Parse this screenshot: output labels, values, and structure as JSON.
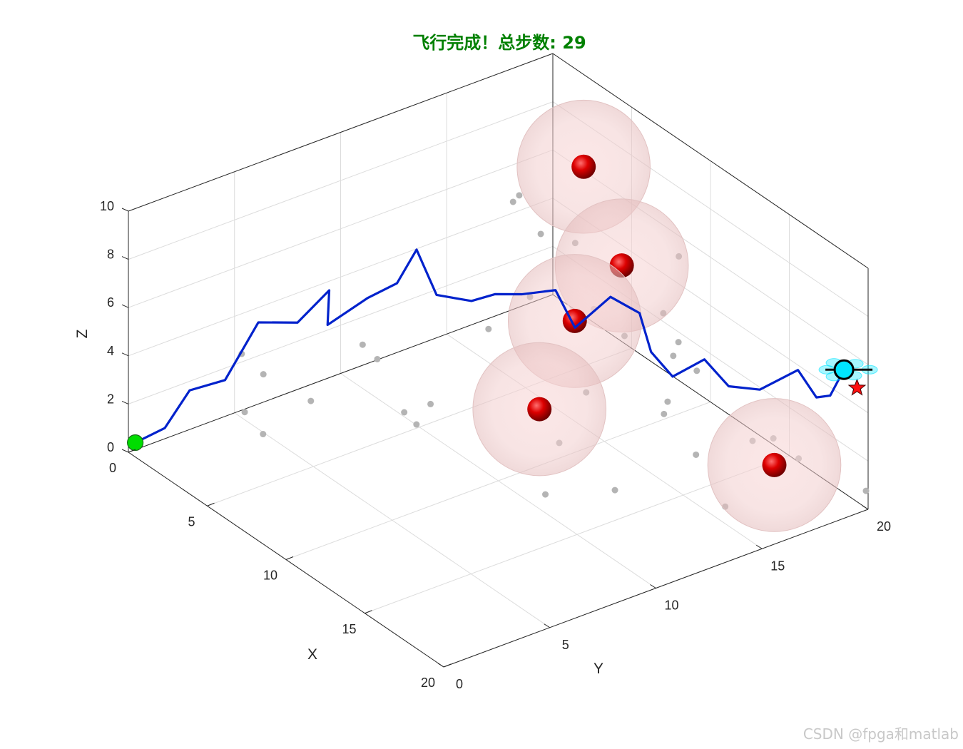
{
  "chart_data": {
    "type": "scatter",
    "title": "飞行完成！总步数: 29",
    "xlabel": "X",
    "ylabel": "Y",
    "zlabel": "Z",
    "xlim": [
      0,
      20
    ],
    "ylim": [
      0,
      20
    ],
    "zlim": [
      0,
      10
    ],
    "x_ticks": [
      "0",
      "5",
      "10",
      "15",
      "20"
    ],
    "y_ticks": [
      "0",
      "5",
      "10",
      "15",
      "20"
    ],
    "z_ticks": [
      "0",
      "2",
      "4",
      "6",
      "8",
      "10"
    ],
    "grid": true,
    "colors": {
      "title": "#008000",
      "path": "#0022cc",
      "start": "#00dd00",
      "goal": "#ff1010",
      "drone": "#00e5ff",
      "obstacle_core": "#cc0000",
      "obstacle_shell": "#f0c8c8",
      "threat_points": "#b4b4b4",
      "axis": "#262626",
      "grid": "#dcdcdc"
    },
    "start": [
      0.3,
      0.1,
      0.5
    ],
    "goal": [
      19.7,
      19.7,
      5.0
    ],
    "drone_position": [
      18.6,
      19.9,
      5.2
    ],
    "path": [
      [
        0.3,
        0.1,
        0.5
      ],
      [
        1.1,
        0.9,
        1.2
      ],
      [
        2.0,
        1.4,
        3.0
      ],
      [
        2.9,
        2.4,
        3.5
      ],
      [
        3.8,
        3.3,
        6.0
      ],
      [
        4.4,
        4.7,
        5.8
      ],
      [
        5.2,
        5.6,
        7.2
      ],
      [
        5.5,
        5.3,
        6.0
      ],
      [
        5.5,
        7.2,
        6.5
      ],
      [
        6.0,
        8.2,
        7.0
      ],
      [
        6.3,
        8.9,
        8.3
      ],
      [
        7.3,
        9.1,
        6.8
      ],
      [
        8.3,
        10.0,
        6.7
      ],
      [
        9.0,
        10.6,
        7.1
      ],
      [
        9.6,
        11.4,
        7.1
      ],
      [
        10.4,
        12.4,
        7.3
      ],
      [
        11.5,
        12.5,
        6.2
      ],
      [
        11.6,
        14.1,
        7.0
      ],
      [
        12.5,
        14.8,
        6.5
      ],
      [
        13.5,
        14.6,
        5.4
      ],
      [
        14.6,
        14.8,
        4.8
      ],
      [
        15.0,
        16.0,
        5.3
      ],
      [
        16.0,
        16.4,
        4.5
      ],
      [
        16.9,
        17.2,
        4.5
      ],
      [
        17.3,
        18.7,
        5.0
      ],
      [
        18.2,
        18.9,
        4.2
      ],
      [
        18.4,
        19.4,
        4.2
      ],
      [
        18.6,
        19.9,
        5.2
      ],
      [
        19.2,
        19.9,
        5.3
      ]
    ],
    "obstacles": [
      {
        "center": [
          3.3,
          19.0,
          7.1
        ],
        "radius": 3.0
      },
      {
        "center": [
          7.2,
          17.9,
          5.1
        ],
        "radius": 3.0
      },
      {
        "center": [
          9.2,
          14.2,
          4.9
        ],
        "radius": 3.0
      },
      {
        "center": [
          11.4,
          10.9,
          3.3
        ],
        "radius": 3.0
      },
      {
        "center": [
          19.3,
          16.1,
          2.8
        ],
        "radius": 3.0
      }
    ],
    "threat_points": [
      [
        1.4,
        4.3,
        3.3
      ],
      [
        2.1,
        4.8,
        2.6
      ],
      [
        2.8,
        3.4,
        1.8
      ],
      [
        4.1,
        3.3,
        1.5
      ],
      [
        5.3,
        7.1,
        4.5
      ],
      [
        6.5,
        6.9,
        4.5
      ],
      [
        7.1,
        8.3,
        1.6
      ],
      [
        7.4,
        7.5,
        2.5
      ],
      [
        3.9,
        5.7,
        2.0
      ],
      [
        8.8,
        7.7,
        3.4
      ],
      [
        7.9,
        11.1,
        5.0
      ],
      [
        6.9,
        13.8,
        5.0
      ],
      [
        3.4,
        15.6,
        6.8
      ],
      [
        6.1,
        14.9,
        6.9
      ],
      [
        10.1,
        12.8,
        0.7
      ],
      [
        14.2,
        9.1,
        1.6
      ],
      [
        13.9,
        12.6,
        0.5
      ],
      [
        14.6,
        15.9,
        1.2
      ],
      [
        12.3,
        16.1,
        1.8
      ],
      [
        10.6,
        17.8,
        2.9
      ],
      [
        9.7,
        18.0,
        4.2
      ],
      [
        8.8,
        19.4,
        5.7
      ],
      [
        12.8,
        15.9,
        2.6
      ],
      [
        15.2,
        19.1,
        1.1
      ],
      [
        16.4,
        19.4,
        0.7
      ],
      [
        20.0,
        19.9,
        0.8
      ],
      [
        6.4,
        16.3,
        6.2
      ],
      [
        4.6,
        15.0,
        7.8
      ],
      [
        9.2,
        15.1,
        5.1
      ],
      [
        10.2,
        15.8,
        4.2
      ],
      [
        12.9,
        17.2,
        3.5
      ],
      [
        15.9,
        17.6,
        1.8
      ],
      [
        11.0,
        13.4,
        3.0
      ],
      [
        17.8,
        14.9,
        0.8
      ],
      [
        11.2,
        17.6,
        3.8
      ],
      [
        7.3,
        18.0,
        5.0
      ]
    ]
  },
  "watermark": "CSDN @fpga和matlab"
}
